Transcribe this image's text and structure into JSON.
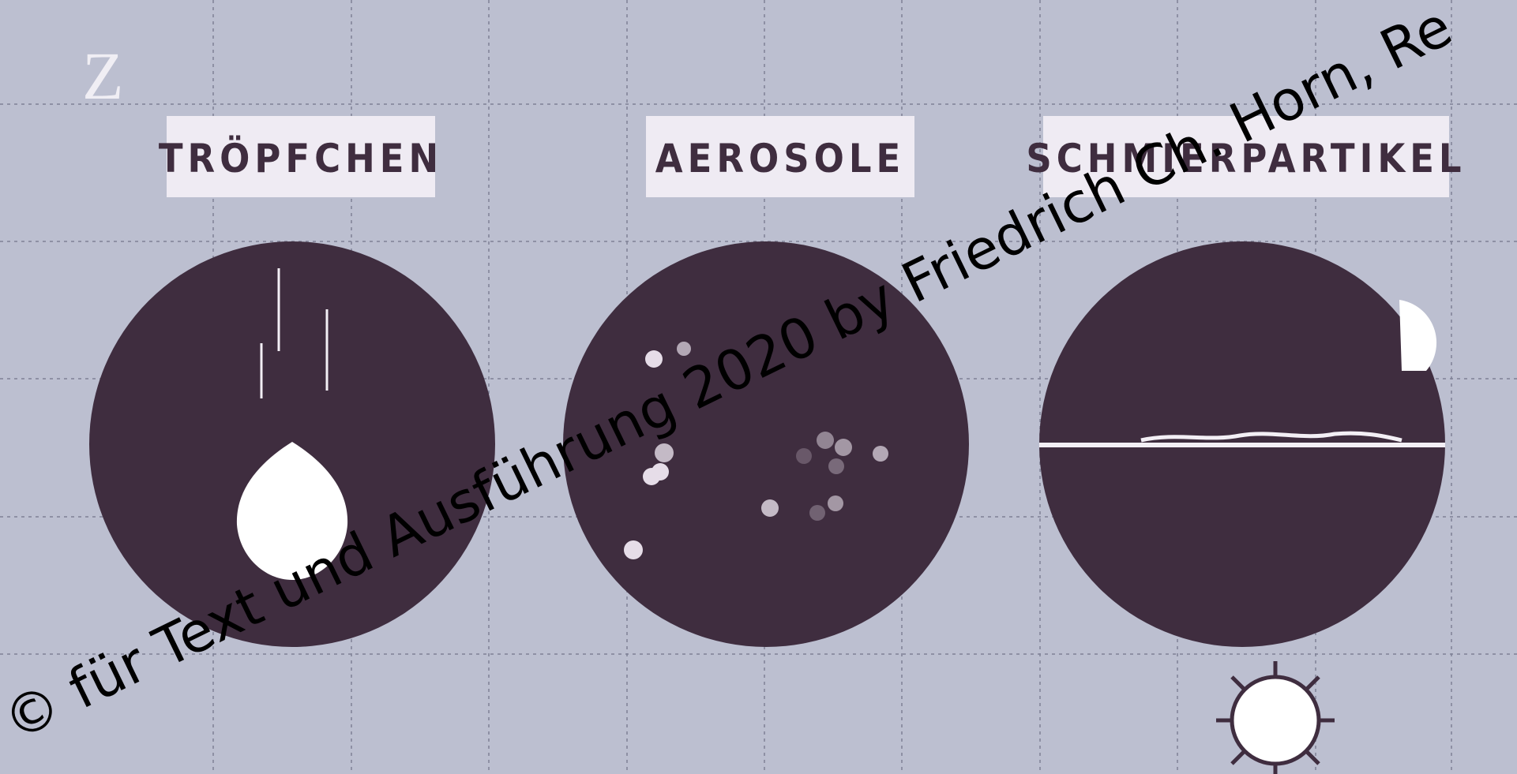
{
  "logo": "Z",
  "panels": [
    {
      "label": "TRÖPFCHEN"
    },
    {
      "label": "AEROSOLE"
    },
    {
      "label": "SCHMIERPARTIKEL"
    }
  ],
  "watermark": "© für Text und Ausführung 2020 by Friedrich Ch. Horn, Re"
}
